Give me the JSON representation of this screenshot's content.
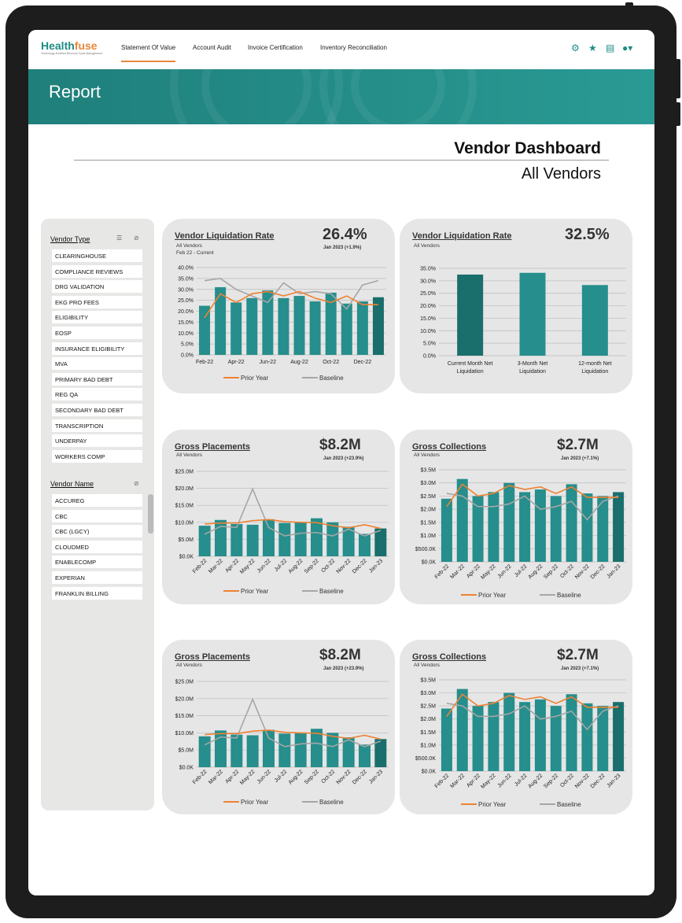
{
  "app": {
    "logo_main": "Health",
    "logo_accent": "fuse",
    "tagline": "Technology-Enabled Revenue Cycle Management"
  },
  "nav": {
    "items": [
      "Statement Of Value",
      "Account Audit",
      "Invoice Certification",
      "Inventory Reconciliation"
    ],
    "active": "Statement Of Value"
  },
  "banner": {
    "title": "Report"
  },
  "dashboard": {
    "title": "Vendor Dashboard",
    "subtitle": "All Vendors"
  },
  "sidebar": {
    "vendor_type_label": "Vendor Type",
    "vendor_types": [
      "CLEARINGHOUSE",
      "COMPLIANCE REVIEWS",
      "DRG VALIDATION",
      "EKG PRO FEES",
      "ELIGIBILITY",
      "EOSP",
      "INSURANCE ELIGIBILITY",
      "MVA",
      "PRIMARY BAD DEBT",
      "REG QA",
      "SECONDARY BAD DEBT",
      "TRANSCRIPTION",
      "UNDERPAY",
      "WORKERS COMP"
    ],
    "vendor_name_label": "Vendor Name",
    "vendor_names": [
      "ACCUREG",
      "CBC",
      "CBC (LGCY)",
      "CLOUDMED",
      "ENABLECOMP",
      "EXPERIAN",
      "FRANKLIN BILLING"
    ]
  },
  "colors": {
    "teal": "#268e8c",
    "teal_dark": "#1a6e6c",
    "orange": "#ee8233",
    "gray": "#a6a6a6",
    "brand": "#1e8c84"
  },
  "cards": [
    {
      "title": "Vendor Liquidation Rate",
      "sub": "All Vendors",
      "sub2": "Feb 22 - Current",
      "big": "26.4%",
      "delta": "Jan 2023 (+1.9%)"
    },
    {
      "title": "Vendor Liquidation Rate",
      "sub": "All Vendors",
      "big": "32.5%"
    },
    {
      "title": "Gross Placements",
      "sub": "All Vendors",
      "big": "$8.2M",
      "delta": "Jan 2023 (+23.9%)"
    },
    {
      "title": "Gross Collections",
      "sub": "All Vendors",
      "big": "$2.7M",
      "delta": "Jan 2023 (+7.1%)"
    },
    {
      "title": "Gross Placements",
      "sub": "All Vendors",
      "big": "$8.2M",
      "delta": "Jan 2023 (+23.9%)"
    },
    {
      "title": "Gross Collections",
      "sub": "All Vendors",
      "big": "$2.7M",
      "delta": "Jan 2023 (+7.1%)"
    }
  ],
  "legend": {
    "prior_year": "Prior Year",
    "baseline": "Baseline"
  },
  "chart_data": [
    {
      "type": "bar",
      "title": "Vendor Liquidation Rate",
      "categories": [
        "Feb-22",
        "Mar-22",
        "Apr-22",
        "May-22",
        "Jun-22",
        "Jul-22",
        "Aug-22",
        "Sep-22",
        "Oct-22",
        "Nov-22",
        "Dec-22",
        "Jan-23"
      ],
      "x_tick_labels": [
        "Feb-22",
        "Apr-22",
        "Jun-22",
        "Aug-22",
        "Oct-22",
        "Dec-22"
      ],
      "values": [
        22.5,
        31,
        24,
        26,
        29.5,
        26,
        27,
        24.5,
        28.5,
        23.5,
        24.5,
        26.4
      ],
      "prior_year": [
        17,
        28,
        24,
        28,
        29,
        27,
        29,
        26,
        24,
        27,
        23,
        23
      ],
      "baseline": [
        34,
        35,
        30,
        27,
        24,
        33,
        28,
        29,
        28,
        21,
        32,
        34
      ],
      "ylim": [
        0,
        40
      ],
      "yticks": [
        "0.0%",
        "5.0%",
        "10.0%",
        "15.0%",
        "20.0%",
        "25.0%",
        "30.0%",
        "35.0%",
        "40.0%"
      ]
    },
    {
      "type": "bar",
      "title": "Vendor Liquidation Rate",
      "categories": [
        "Current Month Net Liquidation",
        "3-Month Net Liquidation",
        "12-month Net Liquidation"
      ],
      "values": [
        32.5,
        33.2,
        28.3
      ],
      "ylim": [
        0,
        35
      ],
      "yticks": [
        "0.0%",
        "5.0%",
        "10.0%",
        "15.0%",
        "20.0%",
        "25.0%",
        "30.0%",
        "35.0%"
      ]
    },
    {
      "type": "bar",
      "title": "Gross Placements",
      "categories": [
        "Feb-22",
        "Mar-22",
        "Apr-22",
        "May-22",
        "Jun-22",
        "Jul-22",
        "Aug-22",
        "Sep-22",
        "Oct-22",
        "Nov-22",
        "Dec-22",
        "Jan-23"
      ],
      "values": [
        9,
        10.7,
        9.5,
        9.3,
        10.9,
        9.8,
        10,
        11.2,
        10,
        8.7,
        6.6,
        8.2
      ],
      "prior_year": [
        9.5,
        9.8,
        9.8,
        10.5,
        10.8,
        10.2,
        10,
        9.9,
        9,
        8.4,
        9.3,
        8.2
      ],
      "baseline": [
        6.5,
        8.8,
        8.5,
        19.8,
        8.5,
        6,
        6.8,
        7,
        6,
        8,
        6,
        7.6
      ],
      "ylim": [
        0,
        25
      ],
      "yticks": [
        "$0.0K",
        "$5.0M",
        "$10.0M",
        "$15.0M",
        "$20.0M",
        "$25.0M"
      ]
    },
    {
      "type": "bar",
      "title": "Gross Collections",
      "categories": [
        "Feb-22",
        "Mar-22",
        "Apr-22",
        "May-22",
        "Jun-22",
        "Jul-22",
        "Aug-22",
        "Sep-22",
        "Oct-22",
        "Nov-22",
        "Dec-22",
        "Jan-23"
      ],
      "values": [
        2.4,
        3.15,
        2.5,
        2.65,
        3,
        2.65,
        2.75,
        2.5,
        2.95,
        2.6,
        2.5,
        2.65
      ],
      "prior_year": [
        2.1,
        2.95,
        2.5,
        2.6,
        2.9,
        2.75,
        2.85,
        2.6,
        2.85,
        2.45,
        2.45,
        2.45
      ],
      "baseline": [
        2.6,
        2.5,
        2.1,
        2.1,
        2.2,
        2.5,
        2,
        2.1,
        2.3,
        1.6,
        2.3,
        2.5
      ],
      "ylim": [
        0,
        3.5
      ],
      "yticks": [
        "$0.0K",
        "$500.0K",
        "$1.0M",
        "$1.5M",
        "$2.0M",
        "$2.5M",
        "$3.0M",
        "$3.5M"
      ]
    },
    {
      "type": "bar",
      "title": "Gross Placements",
      "categories": [
        "Feb-22",
        "Mar-22",
        "Apr-22",
        "May-22",
        "Jun-22",
        "Jul-22",
        "Aug-22",
        "Sep-22",
        "Oct-22",
        "Nov-22",
        "Dec-22",
        "Jan-23"
      ],
      "values": [
        9,
        10.7,
        9.5,
        9.3,
        10.9,
        9.8,
        10,
        11.2,
        10,
        8.7,
        6.6,
        8.2
      ],
      "prior_year": [
        9.5,
        9.8,
        9.8,
        10.5,
        10.8,
        10.2,
        10,
        9.9,
        9,
        8.4,
        9.3,
        8.2
      ],
      "baseline": [
        6.5,
        8.8,
        8.5,
        19.8,
        8.5,
        6,
        6.8,
        7,
        6,
        8,
        6,
        7.6
      ],
      "ylim": [
        0,
        25
      ],
      "yticks": [
        "$0.0K",
        "$5.0M",
        "$10.0M",
        "$15.0M",
        "$20.0M",
        "$25.0M"
      ]
    },
    {
      "type": "bar",
      "title": "Gross Collections",
      "categories": [
        "Feb-22",
        "Mar-22",
        "Apr-22",
        "May-22",
        "Jun-22",
        "Jul-22",
        "Aug-22",
        "Sep-22",
        "Oct-22",
        "Nov-22",
        "Dec-22",
        "Jan-23"
      ],
      "values": [
        2.4,
        3.15,
        2.5,
        2.65,
        3,
        2.65,
        2.75,
        2.5,
        2.95,
        2.6,
        2.5,
        2.65
      ],
      "prior_year": [
        2.1,
        2.95,
        2.5,
        2.6,
        2.9,
        2.75,
        2.85,
        2.6,
        2.85,
        2.45,
        2.45,
        2.45
      ],
      "baseline": [
        2.6,
        2.5,
        2.1,
        2.1,
        2.2,
        2.5,
        2,
        2.1,
        2.3,
        1.6,
        2.3,
        2.5
      ],
      "ylim": [
        0,
        3.5
      ],
      "yticks": [
        "$0.0K",
        "$500.0K",
        "$1.0M",
        "$1.5M",
        "$2.0M",
        "$2.5M",
        "$3.0M",
        "$3.5M"
      ]
    }
  ]
}
